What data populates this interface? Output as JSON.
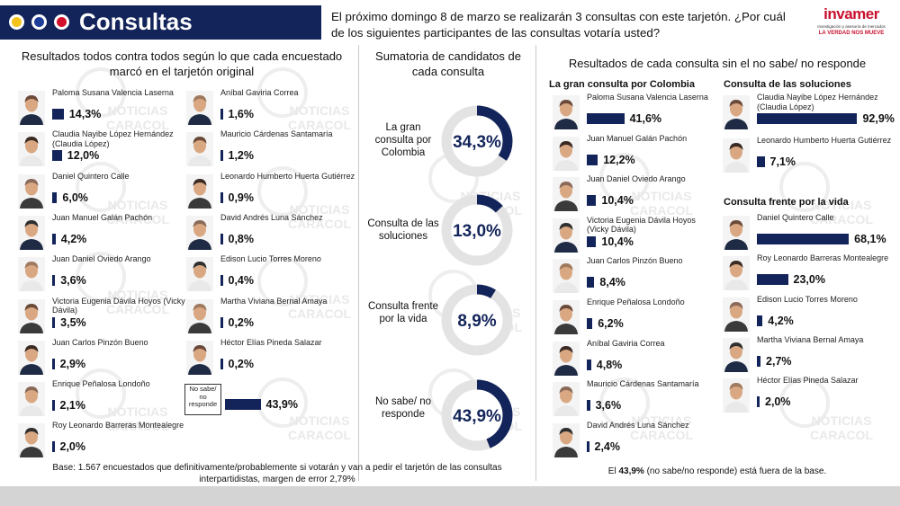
{
  "header": {
    "title": "Consultas",
    "question": "El próximo domingo 8 de marzo se realizarán 3 consultas con este tarjetón. ¿Por cuál de los siguientes participantes de las consultas votaría usted?",
    "logo_name": "invamer",
    "logo_sub": "Investigación y asesoría de mercados",
    "logo_tagline": "LA VERDAD NOS MUEVE"
  },
  "watermark": {
    "line1": "NOTICIAS",
    "line2": "CARACOL",
    "radio": "blu radio"
  },
  "colors": {
    "navy": "#13245a",
    "yellow": "#f3c31b",
    "blue": "#1e3c99",
    "red": "#d3102c",
    "brand_red": "#c8102e"
  },
  "section_left": {
    "title": "Resultados todos contra todos según lo que cada encuestado marcó en el tarjetón original"
  },
  "section_middle": {
    "title": "Sumatoria de candidatos de cada consulta"
  },
  "section_right": {
    "title": "Resultados de cada consulta sin el no sabe/ no responde"
  },
  "gran_consulta_title": "La gran consulta por Colombia",
  "soluciones_title": "Consulta de las soluciones",
  "vida_title": "Consulta frente por la vida",
  "nosabe_label": "No sabe/ no responde",
  "footnote_left": "Base: 1.567 encuestados que definitivamente/probablemente si votarán y van a pedir el tarjetón de las consultas interpartidistas, margen de error 2,79%",
  "footnote_right": {
    "prefix": "El ",
    "value": "43,9%",
    "suffix": " (no sabe/no responde) está fuera de la base."
  },
  "chart_data": [
    {
      "type": "bar",
      "title": "Resultados todos contra todos según lo que cada encuestado marcó en el tarjetón original",
      "categories": [
        "Paloma Susana Valencia Laserna",
        "Claudia Nayibe López Hernández (Claudia López)",
        "Daniel Quintero Calle",
        "Juan Manuel Galán Pachón",
        "Juan Daniel Oviedo Arango",
        "Victoria Eugenia Dávila Hoyos (Vicky Dávila)",
        "Juan Carlos Pinzón Bueno",
        "Enrique Peñalosa Londoño",
        "Roy Leonardo Barreras Montealegre",
        "Aníbal Gaviria Correa",
        "Mauricio Cárdenas Santamaría",
        "Leonardo Humberto Huerta Gutiérrez",
        "David Andrés Luna Sánchez",
        "Edison Lucio Torres Moreno",
        "Martha Viviana Bernal Amaya",
        "Héctor Elías Pineda Salazar",
        "No sabe/ no responde"
      ],
      "values": [
        14.3,
        12.0,
        6.0,
        4.2,
        3.6,
        3.5,
        2.9,
        2.1,
        2.0,
        1.6,
        1.2,
        0.9,
        0.8,
        0.4,
        0.2,
        0.2,
        43.9
      ],
      "labels": [
        "14,3%",
        "12,0%",
        "6,0%",
        "4,2%",
        "3,6%",
        "3,5%",
        "2,9%",
        "2,1%",
        "2,0%",
        "1,6%",
        "1,2%",
        "0,9%",
        "0,8%",
        "0,4%",
        "0,2%",
        "0,2%",
        "43,9%"
      ]
    },
    {
      "type": "pie",
      "title": "Sumatoria de candidatos de cada consulta",
      "categories": [
        "La gran consulta por Colombia",
        "Consulta de las soluciones",
        "Consulta frente por la vida",
        "No sabe/ no responde"
      ],
      "values": [
        34.3,
        13.0,
        8.9,
        43.9
      ],
      "labels": [
        "34,3%",
        "13,0%",
        "8,9%",
        "43,9%"
      ]
    },
    {
      "type": "bar",
      "title": "La gran consulta por Colombia",
      "categories": [
        "Paloma Susana Valencia Laserna",
        "Juan Manuel Galán Pachón",
        "Juan Daniel Oviedo Arango",
        "Victoria Eugenia Dávila Hoyos (Vicky Dávila)",
        "Juan Carlos Pinzón Bueno",
        "Enrique Peñalosa Londoño",
        "Aníbal Gaviria Correa",
        "Mauricio Cárdenas Santamaría",
        "David Andrés Luna Sánchez"
      ],
      "values": [
        41.6,
        12.2,
        10.4,
        10.4,
        8.4,
        6.2,
        4.8,
        3.6,
        2.4
      ],
      "labels": [
        "41,6%",
        "12,2%",
        "10,4%",
        "10,4%",
        "8,4%",
        "6,2%",
        "4,8%",
        "3,6%",
        "2,4%"
      ]
    },
    {
      "type": "bar",
      "title": "Consulta de las soluciones",
      "categories": [
        "Claudia Nayibe López Hernández (Claudia López)",
        "Leonardo Humberto Huerta Gutiérrez"
      ],
      "values": [
        92.9,
        7.1
      ],
      "labels": [
        "92,9%",
        "7,1%"
      ]
    },
    {
      "type": "bar",
      "title": "Consulta frente por la vida",
      "categories": [
        "Daniel Quintero Calle",
        "Roy Leonardo Barreras Montealegre",
        "Edison Lucio Torres Moreno",
        "Martha Viviana Bernal Amaya",
        "Héctor Elías Pineda Salazar"
      ],
      "values": [
        68.1,
        23.0,
        4.2,
        2.7,
        2.0
      ],
      "labels": [
        "68,1%",
        "23,0%",
        "4,2%",
        "2,7%",
        "2,0%"
      ]
    }
  ]
}
